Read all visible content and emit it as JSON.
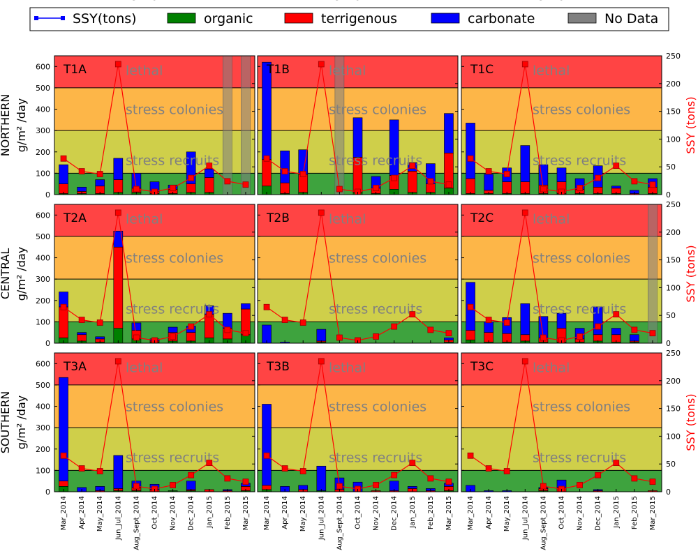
{
  "chart_data": {
    "type": "bar",
    "categories": [
      "Mar_2014",
      "Apr_2014",
      "May_2014",
      "Jun_Jul_2014",
      "Aug_Sept_2014",
      "Oct_2014",
      "Nov_2014",
      "Dec_2014",
      "Jan_2015",
      "Feb_2015",
      "Mar_2015"
    ],
    "legend": [
      {
        "label": "SSY(tons)",
        "color": "#0000ff",
        "kind": "line"
      },
      {
        "label": "organic",
        "color": "#008000",
        "kind": "patch"
      },
      {
        "label": "terrigenous",
        "color": "#ff0000",
        "kind": "patch"
      },
      {
        "label": "carbonate",
        "color": "#0000ff",
        "kind": "patch"
      },
      {
        "label": "No Data",
        "color": "#808080",
        "kind": "patch"
      }
    ],
    "ylim": [
      0,
      650
    ],
    "y2lim": [
      0,
      250
    ],
    "yticks": [
      0,
      100,
      200,
      300,
      400,
      500,
      600
    ],
    "y2ticks": [
      0,
      50,
      100,
      150,
      200,
      250
    ],
    "row_labels": [
      "NORTHERN",
      "CENTRAL",
      "SOUTHERN"
    ],
    "ylabel_unit": "g/m² /day",
    "y2label": "SSY (tons)",
    "zones": [
      {
        "from": 0,
        "to": 100,
        "color": "#3ea33e",
        "label": ""
      },
      {
        "from": 100,
        "to": 300,
        "color": "#cfcf4a",
        "label": "stress recruits"
      },
      {
        "from": 300,
        "to": 500,
        "color": "#fdb648",
        "label": "stress colonies"
      },
      {
        "from": 500,
        "to": 650,
        "color": "#ff4444",
        "label": "lethal"
      }
    ],
    "ssy_series": [
      65,
      42,
      37,
      235,
      10,
      5,
      12,
      30,
      52,
      24,
      18
    ],
    "panels": [
      {
        "title": "T1A",
        "no_data": [
          9,
          10
        ],
        "organic": [
          5,
          5,
          5,
          10,
          10,
          5,
          5,
          10,
          10,
          0,
          0
        ],
        "terrigenous": [
          45,
          10,
          35,
          60,
          20,
          10,
          20,
          40,
          70,
          0,
          0
        ],
        "carbonate": [
          90,
          20,
          30,
          100,
          70,
          45,
          20,
          150,
          40,
          0,
          0
        ]
      },
      {
        "title": "T1B",
        "no_data": [
          4
        ],
        "organic": [
          40,
          5,
          10,
          0,
          0,
          10,
          5,
          25,
          10,
          10,
          30
        ],
        "terrigenous": [
          125,
          50,
          85,
          0,
          0,
          165,
          25,
          65,
          100,
          40,
          165
        ],
        "carbonate": [
          455,
          150,
          115,
          0,
          0,
          185,
          55,
          260,
          40,
          95,
          185
        ]
      },
      {
        "title": "T1C",
        "no_data": [],
        "organic": [
          5,
          5,
          5,
          5,
          5,
          5,
          5,
          5,
          5,
          0,
          5
        ],
        "terrigenous": [
          70,
          15,
          55,
          55,
          40,
          55,
          20,
          30,
          25,
          5,
          30
        ],
        "carbonate": [
          260,
          75,
          65,
          170,
          95,
          65,
          50,
          100,
          10,
          15,
          40
        ]
      },
      {
        "title": "T2A",
        "no_data": [],
        "organic": [
          25,
          10,
          5,
          70,
          20,
          5,
          10,
          10,
          25,
          20,
          40
        ],
        "terrigenous": [
          145,
          30,
          15,
          380,
          40,
          5,
          40,
          40,
          110,
          50,
          120
        ],
        "carbonate": [
          70,
          10,
          10,
          75,
          35,
          10,
          25,
          30,
          40,
          70,
          25
        ]
      },
      {
        "title": "T2B",
        "no_data": [],
        "organic": [
          0,
          0,
          0,
          5,
          0,
          0,
          0,
          0,
          0,
          0,
          5
        ],
        "terrigenous": [
          0,
          0,
          0,
          5,
          0,
          0,
          0,
          0,
          0,
          0,
          10
        ],
        "carbonate": [
          85,
          5,
          0,
          55,
          0,
          0,
          0,
          0,
          0,
          0,
          10
        ]
      },
      {
        "title": "T2C",
        "no_data": [
          10
        ],
        "organic": [
          15,
          5,
          5,
          10,
          5,
          5,
          5,
          10,
          5,
          5,
          0
        ],
        "terrigenous": [
          45,
          45,
          40,
          30,
          20,
          65,
          15,
          30,
          35,
          5,
          0
        ],
        "carbonate": [
          225,
          50,
          75,
          145,
          100,
          70,
          50,
          130,
          30,
          30,
          0
        ]
      },
      {
        "title": "T3A",
        "no_data": [],
        "organic": [
          25,
          0,
          0,
          5,
          5,
          0,
          5,
          5,
          0,
          0,
          5
        ],
        "terrigenous": [
          25,
          0,
          5,
          10,
          15,
          10,
          0,
          5,
          10,
          5,
          20
        ],
        "carbonate": [
          485,
          20,
          20,
          155,
          30,
          25,
          0,
          40,
          0,
          5,
          15
        ]
      },
      {
        "title": "T3B",
        "no_data": [],
        "organic": [
          10,
          0,
          0,
          5,
          0,
          0,
          0,
          0,
          0,
          0,
          5
        ],
        "terrigenous": [
          20,
          0,
          10,
          0,
          10,
          0,
          5,
          5,
          15,
          5,
          20
        ],
        "carbonate": [
          380,
          25,
          20,
          115,
          55,
          45,
          0,
          45,
          10,
          10,
          15
        ]
      },
      {
        "title": "T3C",
        "no_data": [],
        "organic": [
          0,
          0,
          0,
          0,
          5,
          0,
          0,
          0,
          0,
          0,
          0
        ],
        "terrigenous": [
          0,
          0,
          0,
          0,
          10,
          20,
          0,
          5,
          0,
          0,
          5
        ],
        "carbonate": [
          30,
          5,
          5,
          0,
          5,
          35,
          0,
          5,
          0,
          0,
          0
        ]
      }
    ]
  }
}
